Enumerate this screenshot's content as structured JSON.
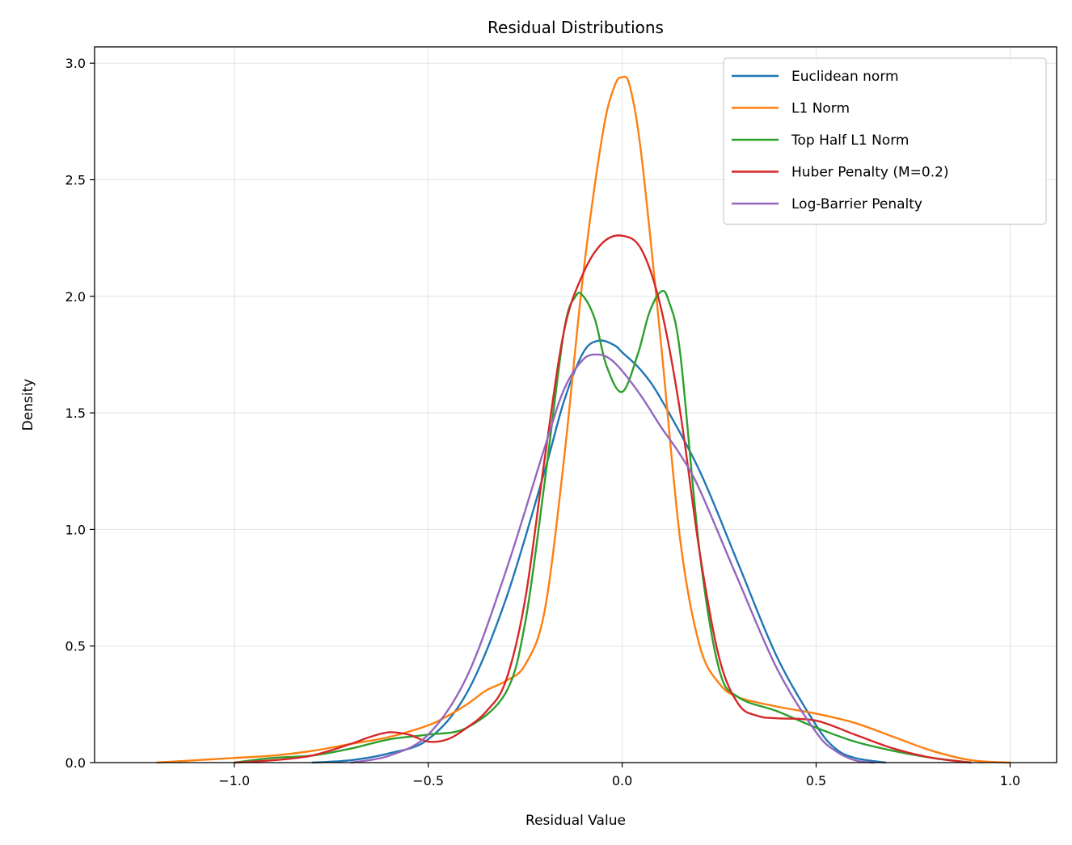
{
  "chart_data": {
    "type": "line",
    "title": "Residual Distributions",
    "xlabel": "Residual Value",
    "ylabel": "Density",
    "xlim": [
      -1.25,
      1.0
    ],
    "ylim": [
      0,
      3.07
    ],
    "xticks": [
      -1.0,
      -0.5,
      0.0,
      0.5,
      1.0
    ],
    "xtick_labels": [
      "−1.0",
      "−0.5",
      "0.0",
      "0.5",
      "1.0"
    ],
    "yticks": [
      0.0,
      0.5,
      1.0,
      1.5,
      2.0,
      2.5,
      3.0
    ],
    "ytick_labels": [
      "0.0",
      "0.5",
      "1.0",
      "1.5",
      "2.0",
      "2.5",
      "3.0"
    ],
    "grid": true,
    "legend_position": "top-right",
    "series": [
      {
        "name": "Euclidean norm",
        "color": "#1f77b4",
        "x": [
          -0.8,
          -0.7,
          -0.6,
          -0.5,
          -0.4,
          -0.3,
          -0.2,
          -0.15,
          -0.1,
          -0.06,
          -0.02,
          0.0,
          0.05,
          0.1,
          0.2,
          0.3,
          0.4,
          0.5,
          0.55,
          0.6,
          0.68
        ],
        "y": [
          0.0,
          0.01,
          0.04,
          0.1,
          0.3,
          0.7,
          1.25,
          1.55,
          1.76,
          1.81,
          1.79,
          1.76,
          1.68,
          1.56,
          1.25,
          0.85,
          0.45,
          0.16,
          0.06,
          0.02,
          0.0
        ]
      },
      {
        "name": "L1 Norm",
        "color": "#ff7f0e",
        "x": [
          -1.2,
          -1.1,
          -1.0,
          -0.9,
          -0.8,
          -0.7,
          -0.6,
          -0.5,
          -0.45,
          -0.4,
          -0.35,
          -0.3,
          -0.25,
          -0.2,
          -0.15,
          -0.1,
          -0.05,
          -0.02,
          0.0,
          0.02,
          0.05,
          0.1,
          0.15,
          0.2,
          0.25,
          0.3,
          0.4,
          0.5,
          0.6,
          0.7,
          0.8,
          0.9,
          1.0
        ],
        "y": [
          0.0,
          0.01,
          0.02,
          0.03,
          0.05,
          0.08,
          0.11,
          0.16,
          0.2,
          0.25,
          0.31,
          0.35,
          0.42,
          0.65,
          1.3,
          2.1,
          2.7,
          2.9,
          2.94,
          2.9,
          2.6,
          1.8,
          0.95,
          0.5,
          0.34,
          0.28,
          0.24,
          0.21,
          0.17,
          0.11,
          0.05,
          0.01,
          0.0
        ]
      },
      {
        "name": "Top Half L1 Norm",
        "color": "#2ca02c",
        "x": [
          -1.0,
          -0.9,
          -0.8,
          -0.7,
          -0.6,
          -0.5,
          -0.4,
          -0.3,
          -0.25,
          -0.2,
          -0.15,
          -0.12,
          -0.1,
          -0.07,
          -0.04,
          0.0,
          0.04,
          0.07,
          0.1,
          0.12,
          0.15,
          0.2,
          0.25,
          0.3,
          0.4,
          0.5,
          0.6,
          0.7,
          0.8,
          0.9
        ],
        "y": [
          0.0,
          0.02,
          0.03,
          0.06,
          0.1,
          0.12,
          0.15,
          0.3,
          0.6,
          1.2,
          1.85,
          2.0,
          2.0,
          1.9,
          1.7,
          1.59,
          1.75,
          1.93,
          2.02,
          1.98,
          1.75,
          0.9,
          0.4,
          0.28,
          0.22,
          0.15,
          0.09,
          0.05,
          0.02,
          0.0
        ]
      },
      {
        "name": "Huber Penalty (M=0.2)",
        "color": "#d62728",
        "x": [
          -1.0,
          -0.9,
          -0.8,
          -0.7,
          -0.65,
          -0.6,
          -0.55,
          -0.5,
          -0.45,
          -0.4,
          -0.35,
          -0.3,
          -0.25,
          -0.2,
          -0.15,
          -0.1,
          -0.05,
          0.0,
          0.05,
          0.1,
          0.15,
          0.2,
          0.25,
          0.3,
          0.35,
          0.4,
          0.5,
          0.6,
          0.7,
          0.8,
          0.9
        ],
        "y": [
          0.0,
          0.01,
          0.03,
          0.08,
          0.11,
          0.13,
          0.12,
          0.09,
          0.1,
          0.15,
          0.22,
          0.35,
          0.7,
          1.3,
          1.85,
          2.1,
          2.23,
          2.26,
          2.2,
          1.95,
          1.5,
          0.9,
          0.45,
          0.25,
          0.2,
          0.19,
          0.18,
          0.12,
          0.06,
          0.02,
          0.0
        ]
      },
      {
        "name": "Log-Barrier Penalty",
        "color": "#9467bd",
        "x": [
          -0.7,
          -0.6,
          -0.5,
          -0.4,
          -0.3,
          -0.2,
          -0.15,
          -0.1,
          -0.06,
          -0.03,
          0.0,
          0.05,
          0.1,
          0.15,
          0.2,
          0.3,
          0.4,
          0.5,
          0.55,
          0.6,
          0.65
        ],
        "y": [
          0.0,
          0.03,
          0.12,
          0.37,
          0.82,
          1.35,
          1.6,
          1.73,
          1.75,
          1.73,
          1.68,
          1.57,
          1.44,
          1.32,
          1.17,
          0.78,
          0.4,
          0.13,
          0.05,
          0.01,
          0.0
        ]
      }
    ]
  }
}
